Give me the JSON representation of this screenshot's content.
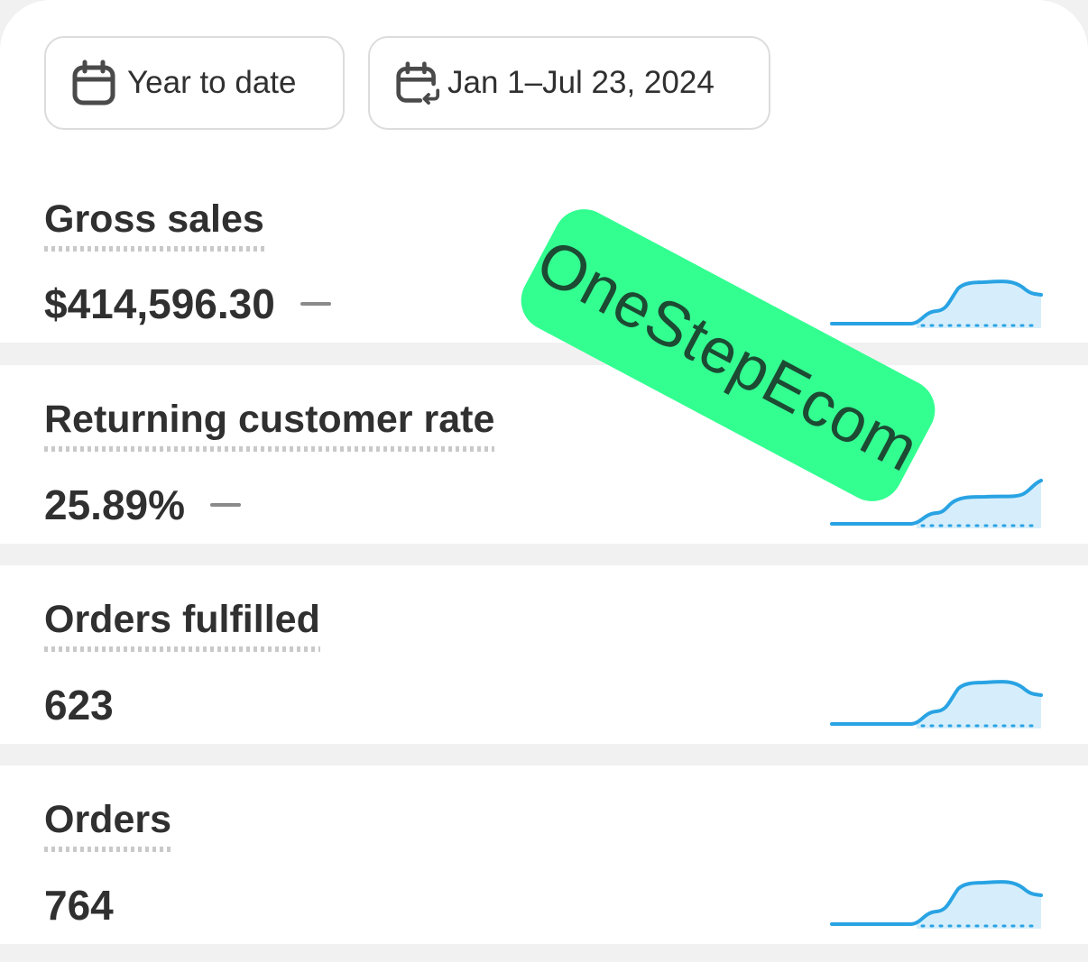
{
  "date_controls": {
    "range_label": "Year to date",
    "dates_label": "Jan 1–Jul 23, 2024"
  },
  "metrics": [
    {
      "title": "Gross sales",
      "value": "$414,596.30",
      "trend_indicator": true
    },
    {
      "title": "Returning customer rate",
      "value": "25.89%",
      "trend_indicator": true
    },
    {
      "title": "Orders fulfilled",
      "value": "623",
      "trend_indicator": false
    },
    {
      "title": "Orders",
      "value": "764",
      "trend_indicator": false
    }
  ],
  "watermark": {
    "text": "OneStepEcom"
  },
  "colors": {
    "sparkline": "#29a3e3",
    "sparkline_fill": "#d6eefb",
    "watermark_bg": "#33ff91"
  },
  "icons": [
    "calendar-icon",
    "calendar-compare-icon"
  ]
}
